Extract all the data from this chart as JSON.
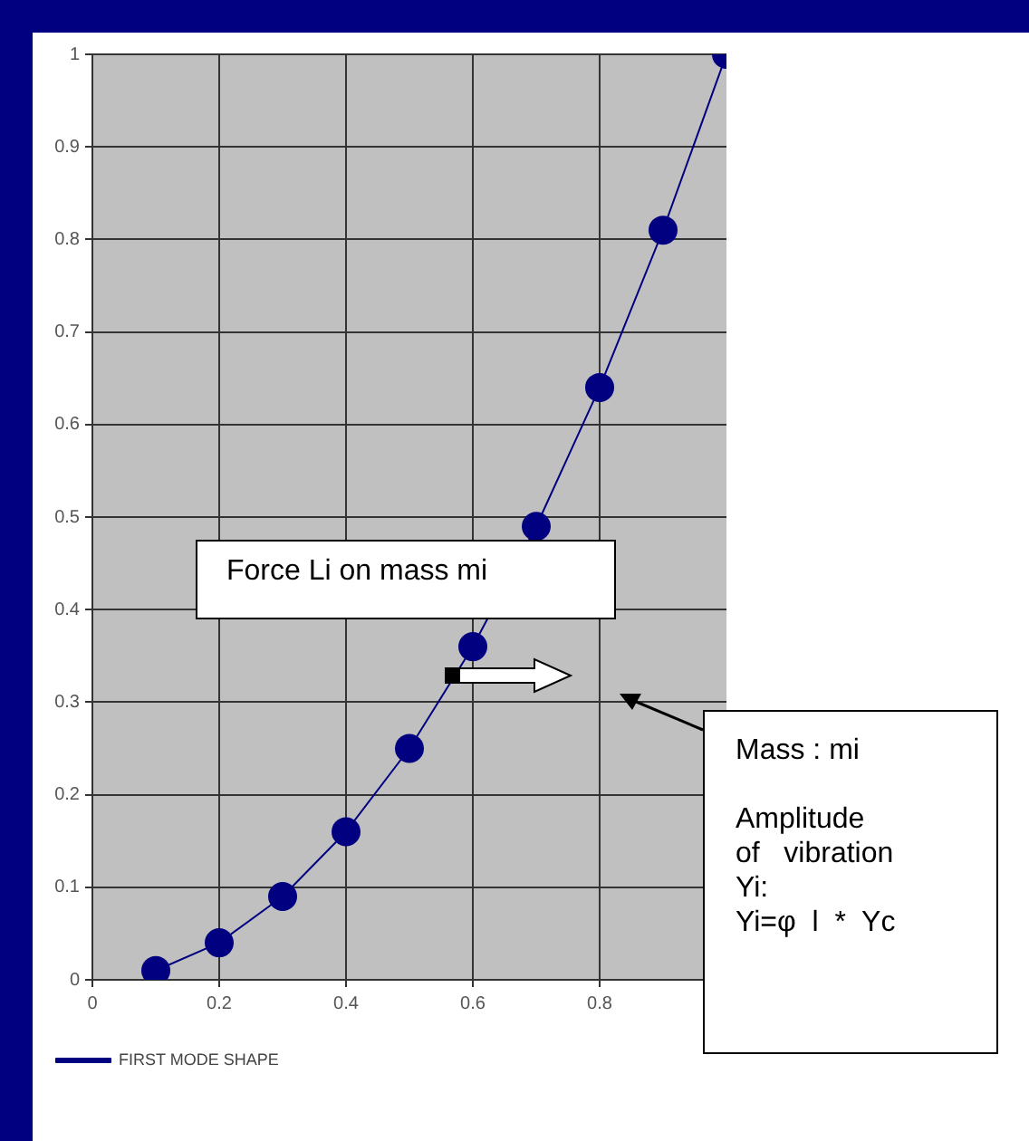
{
  "chart_data": {
    "type": "line",
    "x": [
      0.1,
      0.2,
      0.3,
      0.4,
      0.5,
      0.6,
      0.7,
      0.8,
      0.9,
      1
    ],
    "series": [
      {
        "name": "FIRST MODE SHAPE",
        "color": "#000080",
        "values": [
          0.01,
          0.04,
          0.09,
          0.16,
          0.25,
          0.36,
          0.49,
          0.64,
          0.81,
          1
        ]
      }
    ],
    "xlim": [
      0,
      1
    ],
    "xticks": [
      0,
      0.2,
      0.4,
      0.6,
      0.8
    ],
    "ylim": [
      0,
      1
    ],
    "yticks": [
      0,
      0.1,
      0.2,
      0.3,
      0.4,
      0.5,
      0.6,
      0.7,
      0.8,
      0.9,
      1
    ],
    "grid": true,
    "legend": "bottom",
    "marker": "circle",
    "line_style": "solid",
    "annotations": [
      "Force Li on mass mi",
      "Mass : mi\n\nAmplitude\nof   vibration\nYi:\nYi=φ  l  *  Yc"
    ]
  }
}
